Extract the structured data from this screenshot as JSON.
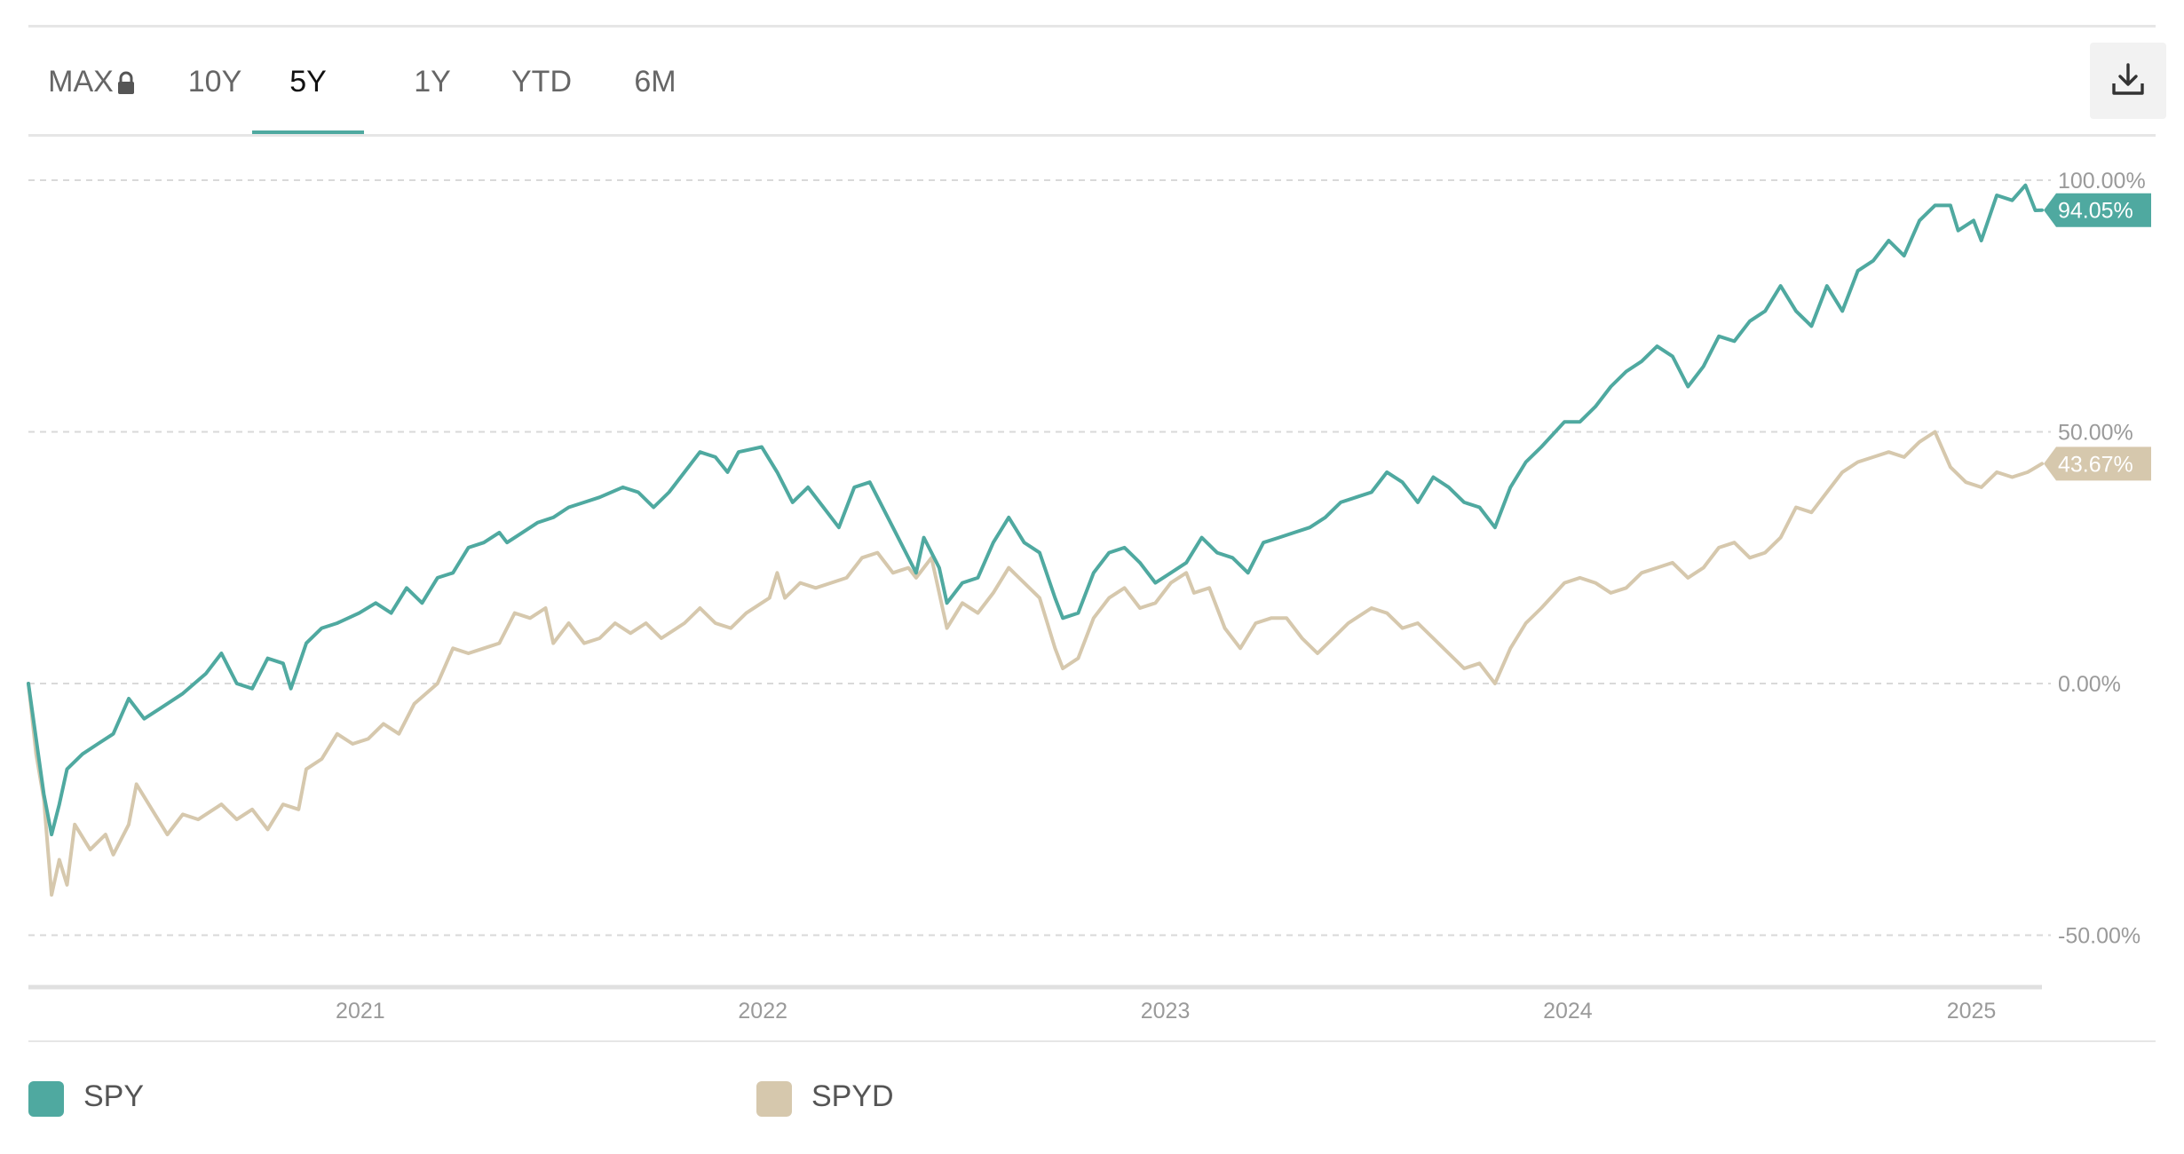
{
  "tabs": [
    {
      "label": "MAX",
      "active": false,
      "locked": true
    },
    {
      "label": "10Y",
      "active": false
    },
    {
      "label": "5Y",
      "active": true
    },
    {
      "label": "1Y",
      "active": false
    },
    {
      "label": "YTD",
      "active": false
    },
    {
      "label": "6M",
      "active": false
    }
  ],
  "toolbar": {
    "download_icon": "download-icon",
    "lock_icon": "lock-icon"
  },
  "colors": {
    "SPY": "#4fa9a0",
    "SPYD": "#d6c8ad",
    "accent": "#4fa9a0",
    "grid": "#d9d9d9",
    "axis_text": "#9a9a9a"
  },
  "legend": [
    {
      "label": "SPY",
      "color": "#4fa9a0"
    },
    {
      "label": "SPYD",
      "color": "#d6c8ad"
    }
  ],
  "chart_data": {
    "type": "line",
    "title": "",
    "xlabel": "",
    "ylabel": "",
    "ylim": [
      -60,
      105
    ],
    "xlim": [
      "2020-03-06",
      "2025-03-06"
    ],
    "y_ticks": [
      {
        "value": 100,
        "label": "100.00%"
      },
      {
        "value": 50,
        "label": "50.00%"
      },
      {
        "value": 0,
        "label": "0.00%"
      },
      {
        "value": -50,
        "label": "-50.00%"
      }
    ],
    "x_ticks": [
      {
        "date": "2021-01-01",
        "label": "2021"
      },
      {
        "date": "2022-01-01",
        "label": "2022"
      },
      {
        "date": "2023-01-01",
        "label": "2023"
      },
      {
        "date": "2024-01-01",
        "label": "2024"
      },
      {
        "date": "2025-01-01",
        "label": "2025"
      }
    ],
    "grid": "horizontal dashed",
    "legend_position": "bottom-left",
    "end_labels": [
      {
        "series": "SPY",
        "label": "94.05%"
      },
      {
        "series": "SPYD",
        "label": "43.67%"
      }
    ],
    "series": [
      {
        "name": "SPY",
        "points": [
          [
            "2020-03-06",
            0
          ],
          [
            "2020-03-13",
            -11
          ],
          [
            "2020-03-20",
            -22
          ],
          [
            "2020-03-27",
            -30
          ],
          [
            "2020-04-03",
            -24
          ],
          [
            "2020-04-10",
            -17
          ],
          [
            "2020-04-24",
            -14
          ],
          [
            "2020-05-08",
            -12
          ],
          [
            "2020-05-22",
            -10
          ],
          [
            "2020-06-05",
            -3
          ],
          [
            "2020-06-19",
            -7
          ],
          [
            "2020-07-03",
            -5
          ],
          [
            "2020-07-24",
            -2
          ],
          [
            "2020-08-14",
            2
          ],
          [
            "2020-08-28",
            6
          ],
          [
            "2020-09-11",
            0
          ],
          [
            "2020-09-25",
            -1
          ],
          [
            "2020-10-09",
            5
          ],
          [
            "2020-10-23",
            4
          ],
          [
            "2020-10-30",
            -1
          ],
          [
            "2020-11-13",
            8
          ],
          [
            "2020-11-27",
            11
          ],
          [
            "2020-12-11",
            12
          ],
          [
            "2020-12-31",
            14
          ],
          [
            "2021-01-15",
            16
          ],
          [
            "2021-01-29",
            14
          ],
          [
            "2021-02-12",
            19
          ],
          [
            "2021-02-26",
            16
          ],
          [
            "2021-03-12",
            21
          ],
          [
            "2021-03-26",
            22
          ],
          [
            "2021-04-09",
            27
          ],
          [
            "2021-04-23",
            28
          ],
          [
            "2021-05-07",
            30
          ],
          [
            "2021-05-14",
            28
          ],
          [
            "2021-05-28",
            30
          ],
          [
            "2021-06-11",
            32
          ],
          [
            "2021-06-25",
            33
          ],
          [
            "2021-07-09",
            35
          ],
          [
            "2021-07-23",
            36
          ],
          [
            "2021-08-06",
            37
          ],
          [
            "2021-08-27",
            39
          ],
          [
            "2021-09-10",
            38
          ],
          [
            "2021-09-24",
            35
          ],
          [
            "2021-10-08",
            38
          ],
          [
            "2021-10-22",
            42
          ],
          [
            "2021-11-05",
            46
          ],
          [
            "2021-11-19",
            45
          ],
          [
            "2021-11-30",
            42
          ],
          [
            "2021-12-10",
            46
          ],
          [
            "2021-12-31",
            47
          ],
          [
            "2022-01-14",
            42
          ],
          [
            "2022-01-28",
            36
          ],
          [
            "2022-02-11",
            39
          ],
          [
            "2022-02-25",
            35
          ],
          [
            "2022-03-11",
            31
          ],
          [
            "2022-03-25",
            39
          ],
          [
            "2022-04-08",
            40
          ],
          [
            "2022-04-22",
            34
          ],
          [
            "2022-05-06",
            28
          ],
          [
            "2022-05-20",
            22
          ],
          [
            "2022-05-27",
            29
          ],
          [
            "2022-06-10",
            23
          ],
          [
            "2022-06-17",
            16
          ],
          [
            "2022-07-01",
            20
          ],
          [
            "2022-07-15",
            21
          ],
          [
            "2022-07-29",
            28
          ],
          [
            "2022-08-12",
            33
          ],
          [
            "2022-08-26",
            28
          ],
          [
            "2022-09-09",
            26
          ],
          [
            "2022-09-23",
            17
          ],
          [
            "2022-09-30",
            13
          ],
          [
            "2022-10-14",
            14
          ],
          [
            "2022-10-28",
            22
          ],
          [
            "2022-11-11",
            26
          ],
          [
            "2022-11-25",
            27
          ],
          [
            "2022-12-09",
            24
          ],
          [
            "2022-12-23",
            20
          ],
          [
            "2023-01-06",
            22
          ],
          [
            "2023-01-20",
            24
          ],
          [
            "2023-02-03",
            29
          ],
          [
            "2023-02-17",
            26
          ],
          [
            "2023-03-03",
            25
          ],
          [
            "2023-03-17",
            22
          ],
          [
            "2023-03-31",
            28
          ],
          [
            "2023-04-14",
            29
          ],
          [
            "2023-04-28",
            30
          ],
          [
            "2023-05-12",
            31
          ],
          [
            "2023-05-26",
            33
          ],
          [
            "2023-06-09",
            36
          ],
          [
            "2023-06-23",
            37
          ],
          [
            "2023-07-07",
            38
          ],
          [
            "2023-07-21",
            42
          ],
          [
            "2023-08-04",
            40
          ],
          [
            "2023-08-18",
            36
          ],
          [
            "2023-09-01",
            41
          ],
          [
            "2023-09-15",
            39
          ],
          [
            "2023-09-29",
            36
          ],
          [
            "2023-10-13",
            35
          ],
          [
            "2023-10-27",
            31
          ],
          [
            "2023-11-10",
            39
          ],
          [
            "2023-11-24",
            44
          ],
          [
            "2023-12-08",
            47
          ],
          [
            "2023-12-29",
            52
          ],
          [
            "2024-01-12",
            52
          ],
          [
            "2024-01-26",
            55
          ],
          [
            "2024-02-09",
            59
          ],
          [
            "2024-02-23",
            62
          ],
          [
            "2024-03-08",
            64
          ],
          [
            "2024-03-22",
            67
          ],
          [
            "2024-04-05",
            65
          ],
          [
            "2024-04-19",
            59
          ],
          [
            "2024-05-03",
            63
          ],
          [
            "2024-05-17",
            69
          ],
          [
            "2024-05-31",
            68
          ],
          [
            "2024-06-14",
            72
          ],
          [
            "2024-06-28",
            74
          ],
          [
            "2024-07-12",
            79
          ],
          [
            "2024-07-26",
            74
          ],
          [
            "2024-08-09",
            71
          ],
          [
            "2024-08-23",
            79
          ],
          [
            "2024-09-06",
            74
          ],
          [
            "2024-09-20",
            82
          ],
          [
            "2024-10-04",
            84
          ],
          [
            "2024-10-18",
            88
          ],
          [
            "2024-11-01",
            85
          ],
          [
            "2024-11-15",
            92
          ],
          [
            "2024-11-29",
            95
          ],
          [
            "2024-12-13",
            95
          ],
          [
            "2024-12-20",
            90
          ],
          [
            "2025-01-03",
            92
          ],
          [
            "2025-01-10",
            88
          ],
          [
            "2025-01-24",
            97
          ],
          [
            "2025-02-07",
            96
          ],
          [
            "2025-02-19",
            99
          ],
          [
            "2025-02-28",
            94
          ],
          [
            "2025-03-06",
            94.05
          ]
        ]
      },
      {
        "name": "SPYD",
        "points": [
          [
            "2020-03-06",
            0
          ],
          [
            "2020-03-13",
            -14
          ],
          [
            "2020-03-20",
            -23
          ],
          [
            "2020-03-27",
            -42
          ],
          [
            "2020-04-03",
            -35
          ],
          [
            "2020-04-10",
            -40
          ],
          [
            "2020-04-17",
            -28
          ],
          [
            "2020-05-01",
            -33
          ],
          [
            "2020-05-15",
            -30
          ],
          [
            "2020-05-22",
            -34
          ],
          [
            "2020-06-05",
            -28
          ],
          [
            "2020-06-12",
            -20
          ],
          [
            "2020-06-26",
            -25
          ],
          [
            "2020-07-10",
            -30
          ],
          [
            "2020-07-24",
            -26
          ],
          [
            "2020-08-07",
            -27
          ],
          [
            "2020-08-28",
            -24
          ],
          [
            "2020-09-11",
            -27
          ],
          [
            "2020-09-25",
            -25
          ],
          [
            "2020-10-09",
            -29
          ],
          [
            "2020-10-23",
            -24
          ],
          [
            "2020-11-06",
            -25
          ],
          [
            "2020-11-13",
            -17
          ],
          [
            "2020-11-27",
            -15
          ],
          [
            "2020-12-11",
            -10
          ],
          [
            "2020-12-25",
            -12
          ],
          [
            "2021-01-08",
            -11
          ],
          [
            "2021-01-22",
            -8
          ],
          [
            "2021-02-05",
            -10
          ],
          [
            "2021-02-19",
            -4
          ],
          [
            "2021-03-12",
            0
          ],
          [
            "2021-03-26",
            7
          ],
          [
            "2021-04-09",
            6
          ],
          [
            "2021-04-23",
            7
          ],
          [
            "2021-05-07",
            8
          ],
          [
            "2021-05-21",
            14
          ],
          [
            "2021-06-04",
            13
          ],
          [
            "2021-06-18",
            15
          ],
          [
            "2021-06-25",
            8
          ],
          [
            "2021-07-09",
            12
          ],
          [
            "2021-07-23",
            8
          ],
          [
            "2021-08-06",
            9
          ],
          [
            "2021-08-20",
            12
          ],
          [
            "2021-09-03",
            10
          ],
          [
            "2021-09-17",
            12
          ],
          [
            "2021-10-01",
            9
          ],
          [
            "2021-10-22",
            12
          ],
          [
            "2021-11-05",
            15
          ],
          [
            "2021-11-19",
            12
          ],
          [
            "2021-12-03",
            11
          ],
          [
            "2021-12-17",
            14
          ],
          [
            "2022-01-07",
            17
          ],
          [
            "2022-01-14",
            22
          ],
          [
            "2022-01-21",
            17
          ],
          [
            "2022-02-04",
            20
          ],
          [
            "2022-02-18",
            19
          ],
          [
            "2022-03-04",
            20
          ],
          [
            "2022-03-18",
            21
          ],
          [
            "2022-04-01",
            25
          ],
          [
            "2022-04-15",
            26
          ],
          [
            "2022-04-29",
            22
          ],
          [
            "2022-05-13",
            23
          ],
          [
            "2022-05-20",
            21
          ],
          [
            "2022-06-03",
            25
          ],
          [
            "2022-06-17",
            11
          ],
          [
            "2022-07-01",
            16
          ],
          [
            "2022-07-15",
            14
          ],
          [
            "2022-07-29",
            18
          ],
          [
            "2022-08-12",
            23
          ],
          [
            "2022-08-26",
            20
          ],
          [
            "2022-09-09",
            17
          ],
          [
            "2022-09-23",
            7
          ],
          [
            "2022-09-30",
            3
          ],
          [
            "2022-10-14",
            5
          ],
          [
            "2022-10-28",
            13
          ],
          [
            "2022-11-11",
            17
          ],
          [
            "2022-11-25",
            19
          ],
          [
            "2022-12-09",
            15
          ],
          [
            "2022-12-23",
            16
          ],
          [
            "2023-01-06",
            20
          ],
          [
            "2023-01-20",
            22
          ],
          [
            "2023-01-27",
            18
          ],
          [
            "2023-02-10",
            19
          ],
          [
            "2023-02-24",
            11
          ],
          [
            "2023-03-10",
            7
          ],
          [
            "2023-03-24",
            12
          ],
          [
            "2023-04-07",
            13
          ],
          [
            "2023-04-21",
            13
          ],
          [
            "2023-05-05",
            9
          ],
          [
            "2023-05-19",
            6
          ],
          [
            "2023-06-02",
            9
          ],
          [
            "2023-06-16",
            12
          ],
          [
            "2023-07-07",
            15
          ],
          [
            "2023-07-21",
            14
          ],
          [
            "2023-08-04",
            11
          ],
          [
            "2023-08-18",
            12
          ],
          [
            "2023-09-01",
            9
          ],
          [
            "2023-09-15",
            6
          ],
          [
            "2023-09-29",
            3
          ],
          [
            "2023-10-13",
            4
          ],
          [
            "2023-10-27",
            0
          ],
          [
            "2023-11-10",
            7
          ],
          [
            "2023-11-24",
            12
          ],
          [
            "2023-12-08",
            15
          ],
          [
            "2023-12-29",
            20
          ],
          [
            "2024-01-12",
            21
          ],
          [
            "2024-01-26",
            20
          ],
          [
            "2024-02-09",
            18
          ],
          [
            "2024-02-23",
            19
          ],
          [
            "2024-03-08",
            22
          ],
          [
            "2024-03-22",
            23
          ],
          [
            "2024-04-05",
            24
          ],
          [
            "2024-04-19",
            21
          ],
          [
            "2024-05-03",
            23
          ],
          [
            "2024-05-17",
            27
          ],
          [
            "2024-05-31",
            28
          ],
          [
            "2024-06-14",
            25
          ],
          [
            "2024-06-28",
            26
          ],
          [
            "2024-07-12",
            29
          ],
          [
            "2024-07-26",
            35
          ],
          [
            "2024-08-09",
            34
          ],
          [
            "2024-08-23",
            38
          ],
          [
            "2024-09-06",
            42
          ],
          [
            "2024-09-20",
            44
          ],
          [
            "2024-10-04",
            45
          ],
          [
            "2024-10-18",
            46
          ],
          [
            "2024-11-01",
            45
          ],
          [
            "2024-11-15",
            48
          ],
          [
            "2024-11-29",
            50
          ],
          [
            "2024-12-13",
            43
          ],
          [
            "2024-12-27",
            40
          ],
          [
            "2025-01-10",
            39
          ],
          [
            "2025-01-24",
            42
          ],
          [
            "2025-02-07",
            41
          ],
          [
            "2025-02-21",
            42
          ],
          [
            "2025-03-06",
            43.67
          ]
        ]
      }
    ]
  }
}
